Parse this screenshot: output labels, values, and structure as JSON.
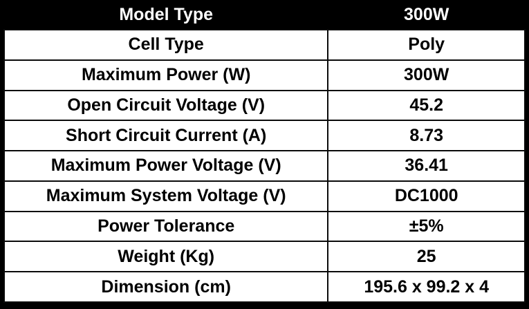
{
  "table": {
    "header": {
      "label": "Model Type",
      "value": "300W"
    },
    "rows": [
      {
        "label": "Cell Type",
        "value": "Poly"
      },
      {
        "label": "Maximum Power (W)",
        "value": "300W"
      },
      {
        "label": "Open Circuit Voltage (V)",
        "value": "45.2"
      },
      {
        "label": "Short Circuit Current (A)",
        "value": "8.73"
      },
      {
        "label": "Maximum Power Voltage (V)",
        "value": "36.41"
      },
      {
        "label": "Maximum System Voltage (V)",
        "value": "DC1000"
      },
      {
        "label": "Power Tolerance",
        "value": "±5%"
      },
      {
        "label": "Weight (Kg)",
        "value": "25"
      },
      {
        "label": "Dimension (cm)",
        "value": "195.6 x 99.2 x 4"
      }
    ],
    "colors": {
      "header_bg": "#000000",
      "header_text": "#ffffff",
      "row_bg": "#ffffff",
      "row_text": "#000000",
      "border": "#000000"
    }
  }
}
